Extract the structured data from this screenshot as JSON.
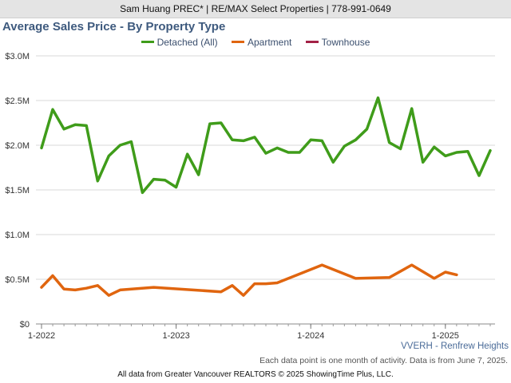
{
  "header": {
    "agent_line": "Sam Huang PREC* | RE/MAX Select Properties | 778-991-0649"
  },
  "footer": {
    "area_label": "VVERH - Renfrew Heights",
    "note": "Each data point is one month of activity. Data is from June 7, 2025.",
    "copyright": "All data from Greater Vancouver REALTORS © 2025 ShowingTime Plus, LLC."
  },
  "chart_data": {
    "type": "line",
    "title": "Average Sales Price - By Property Type",
    "xlabel": "",
    "ylabel": "",
    "y_ticks": [
      "$0",
      "$0.5M",
      "$1.0M",
      "$1.5M",
      "$2.0M",
      "$2.5M",
      "$3.0M"
    ],
    "ylim": [
      0,
      3000000
    ],
    "x_ticks": [
      "1-2022",
      "1-2023",
      "1-2024",
      "1-2025"
    ],
    "x_range": [
      "2022-01",
      "2025-05"
    ],
    "grid": true,
    "legend_position": "top-center",
    "series": [
      {
        "name": "Detached (All)",
        "color": "#3f9c1a",
        "x": [
          "2022-01",
          "2022-02",
          "2022-03",
          "2022-04",
          "2022-05",
          "2022-06",
          "2022-07",
          "2022-08",
          "2022-09",
          "2022-10",
          "2022-11",
          "2022-12",
          "2023-01",
          "2023-02",
          "2023-03",
          "2023-04",
          "2023-05",
          "2023-06",
          "2023-07",
          "2023-08",
          "2023-09",
          "2023-10",
          "2023-11",
          "2023-12",
          "2024-01",
          "2024-02",
          "2024-03",
          "2024-04",
          "2024-05",
          "2024-06",
          "2024-07",
          "2024-08",
          "2024-09",
          "2024-10",
          "2024-11",
          "2024-12",
          "2025-01",
          "2025-02",
          "2025-03",
          "2025-04",
          "2025-05"
        ],
        "values": [
          1970000,
          2400000,
          2180000,
          2230000,
          2220000,
          1600000,
          1880000,
          2000000,
          2040000,
          1470000,
          1620000,
          1610000,
          1530000,
          1900000,
          1670000,
          2240000,
          2250000,
          2060000,
          2050000,
          2090000,
          1910000,
          1970000,
          1920000,
          1920000,
          2060000,
          2050000,
          1810000,
          1990000,
          2060000,
          2180000,
          2530000,
          2030000,
          1960000,
          2410000,
          1810000,
          1980000,
          1880000,
          1920000,
          1930000,
          1660000,
          1940000
        ]
      },
      {
        "name": "Apartment",
        "color": "#e0650f",
        "x": [
          "2022-01",
          "2022-02",
          "2022-03",
          "2022-04",
          "2022-05",
          "2022-06",
          "2022-07",
          "2022-08",
          "2022-11",
          "2023-05",
          "2023-06",
          "2023-07",
          "2023-08",
          "2023-09",
          "2023-10",
          "2024-02",
          "2024-05",
          "2024-08",
          "2024-10",
          "2024-12",
          "2025-01",
          "2025-02"
        ],
        "values": [
          410000,
          540000,
          390000,
          380000,
          400000,
          430000,
          320000,
          380000,
          410000,
          360000,
          430000,
          320000,
          450000,
          450000,
          460000,
          660000,
          510000,
          520000,
          660000,
          510000,
          580000,
          550000
        ]
      },
      {
        "name": "Townhouse",
        "color": "#a32146",
        "x": [],
        "values": []
      }
    ]
  }
}
